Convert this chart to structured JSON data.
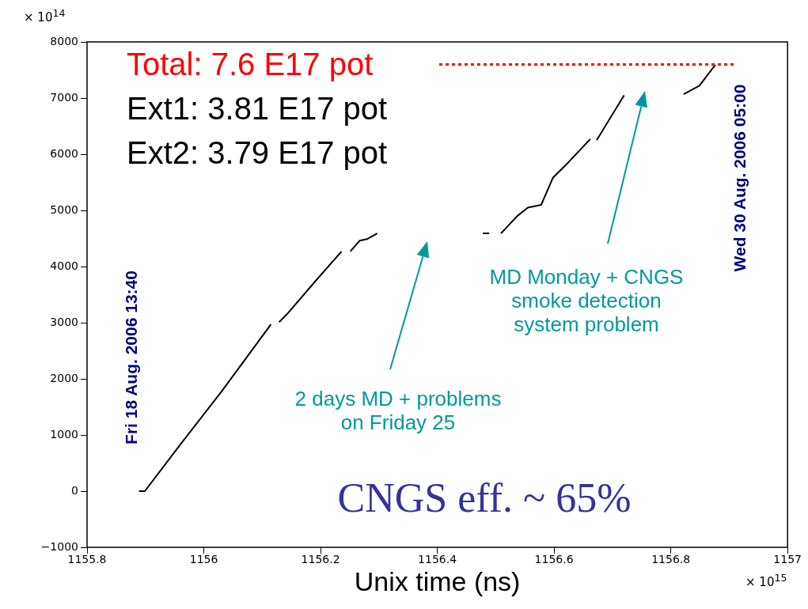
{
  "chart_data": {
    "type": "line",
    "xlabel": "Unix time (ns)",
    "marker": "none",
    "line_style": "solid",
    "legend": false,
    "xlim": [
      1155.8,
      1157
    ],
    "xticks": [
      1155.8,
      1156,
      1156.2,
      1156.4,
      1156.6,
      1156.8,
      1157
    ],
    "ylim": [
      -1000,
      8000
    ],
    "yticks": [
      -1000,
      0,
      1000,
      2000,
      3000,
      4000,
      5000,
      6000,
      7000,
      8000
    ],
    "series": [
      {
        "color": "#000000",
        "x": [
          1155.889,
          1155.899,
          1155.962,
          1156.03,
          1156.115,
          1156.12,
          1156.129,
          1156.145,
          1156.192,
          1156.236,
          1156.244,
          1156.251,
          1156.267,
          1156.28,
          1156.297,
          1156.4,
          1156.478,
          1156.489,
          1156.5,
          1156.509,
          1156.537,
          1156.555,
          1156.578,
          1156.598,
          1156.625,
          1156.662,
          1156.667,
          1156.673,
          1156.72,
          1156.77,
          1156.822,
          1156.849,
          1156.876
        ],
        "values": [
          0,
          0,
          860,
          1770,
          2970,
          null,
          3010,
          3180,
          3750,
          4270,
          null,
          4270,
          4460,
          4490,
          4590,
          null,
          4590,
          4590,
          null,
          4590,
          4900,
          5050,
          5100,
          5580,
          5860,
          6270,
          null,
          6250,
          7050,
          null,
          7070,
          7220,
          7590
        ]
      }
    ],
    "ref_lines": [
      {
        "axis": "y",
        "value": 7600,
        "color": "#ff0000",
        "line_style": "dotted"
      }
    ],
    "annotations": [
      "Total: 7.6 E17 pot",
      "× 10$^{14}$",
      "× 10$^{15}$",
      "Ext1: 3.81 E17 pot",
      "Ext2: 3.79 E17 pot",
      "Fri 18 Aug. 2006 13:40",
      "Wed 30 Aug. 2006 05:00",
      "2 days MD + problems\non Friday 25",
      "MD Monday + CNGS\nsmoke detection\nsystem problem",
      "CNGS eff. ~ 65%"
    ]
  }
}
